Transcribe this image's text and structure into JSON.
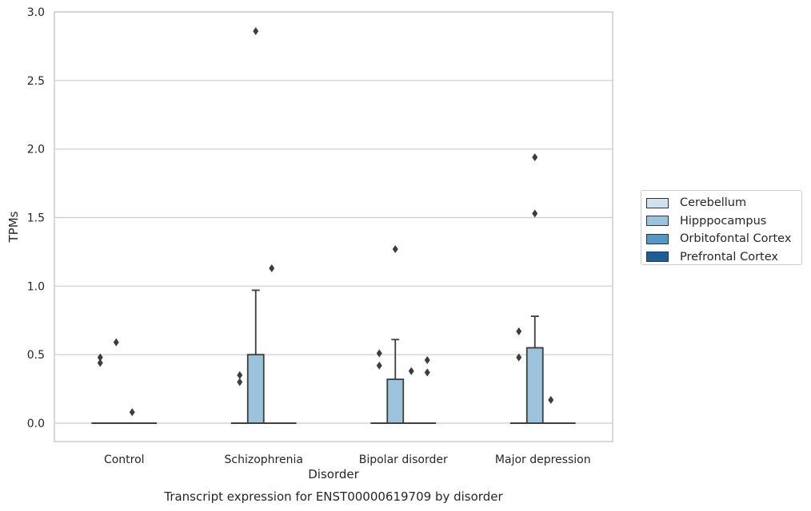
{
  "chart_data": {
    "type": "box",
    "title": "Transcript expression for ENST00000619709 by disorder",
    "xlabel": "Disorder",
    "ylabel": "TPMs",
    "ylim": [
      -0.13,
      3.0
    ],
    "yticks": [
      "0.0",
      "0.5",
      "1.0",
      "1.5",
      "2.0",
      "2.5",
      "3.0"
    ],
    "yticks_values": [
      0,
      0.5,
      1.0,
      1.5,
      2.0,
      2.5,
      3.0
    ],
    "categories": [
      "Control",
      "Schizophrenia",
      "Bipolar disorder",
      "Major depression"
    ],
    "grid": "horizontal",
    "legend_position": "right",
    "series": [
      {
        "name": "Cerebellum",
        "color": "#d1e1f0",
        "boxes": [
          {
            "q1": 0,
            "median": 0,
            "q3": 0,
            "whislo": 0,
            "whishi": 0,
            "fliers": [
              0.44,
              0.48
            ]
          },
          {
            "q1": 0,
            "median": 0,
            "q3": 0,
            "whislo": 0,
            "whishi": 0,
            "fliers": [
              0.3,
              0.35
            ]
          },
          {
            "q1": 0,
            "median": 0,
            "q3": 0,
            "whislo": 0,
            "whishi": 0,
            "fliers": [
              0.42,
              0.51
            ]
          },
          {
            "q1": 0,
            "median": 0,
            "q3": 0,
            "whislo": 0,
            "whishi": 0,
            "fliers": [
              0.48,
              0.67
            ]
          }
        ]
      },
      {
        "name": "Hipppocampus",
        "color": "#9dc3dc",
        "boxes": [
          {
            "q1": 0,
            "median": 0,
            "q3": 0,
            "whislo": 0,
            "whishi": 0,
            "fliers": [
              0.59
            ]
          },
          {
            "q1": 0,
            "median": 0,
            "q3": 0.5,
            "whislo": 0,
            "whishi": 0.97,
            "fliers": [
              2.86
            ]
          },
          {
            "q1": 0,
            "median": 0,
            "q3": 0.32,
            "whislo": 0,
            "whishi": 0.61,
            "fliers": [
              1.27
            ]
          },
          {
            "q1": 0,
            "median": 0,
            "q3": 0.55,
            "whislo": 0,
            "whishi": 0.78,
            "fliers": [
              1.53,
              1.94
            ]
          }
        ]
      },
      {
        "name": "Orbitofontal Cortex",
        "color": "#5896c4",
        "boxes": [
          {
            "q1": 0,
            "median": 0,
            "q3": 0,
            "whislo": 0,
            "whishi": 0,
            "fliers": [
              0.08
            ]
          },
          {
            "q1": 0,
            "median": 0,
            "q3": 0,
            "whislo": 0,
            "whishi": 0,
            "fliers": [
              1.13
            ]
          },
          {
            "q1": 0,
            "median": 0,
            "q3": 0,
            "whislo": 0,
            "whishi": 0,
            "fliers": [
              0.38
            ]
          },
          {
            "q1": 0,
            "median": 0,
            "q3": 0,
            "whislo": 0,
            "whishi": 0,
            "fliers": [
              0.17
            ]
          }
        ]
      },
      {
        "name": "Prefrontal Cortex",
        "color": "#215d95",
        "boxes": [
          {
            "q1": 0,
            "median": 0,
            "q3": 0,
            "whislo": 0,
            "whishi": 0,
            "fliers": []
          },
          {
            "q1": 0,
            "median": 0,
            "q3": 0,
            "whislo": 0,
            "whishi": 0,
            "fliers": []
          },
          {
            "q1": 0,
            "median": 0,
            "q3": 0,
            "whislo": 0,
            "whishi": 0,
            "fliers": [
              0.37,
              0.46
            ]
          },
          {
            "q1": 0,
            "median": 0,
            "q3": 0,
            "whislo": 0,
            "whishi": 0,
            "fliers": []
          }
        ]
      }
    ]
  }
}
